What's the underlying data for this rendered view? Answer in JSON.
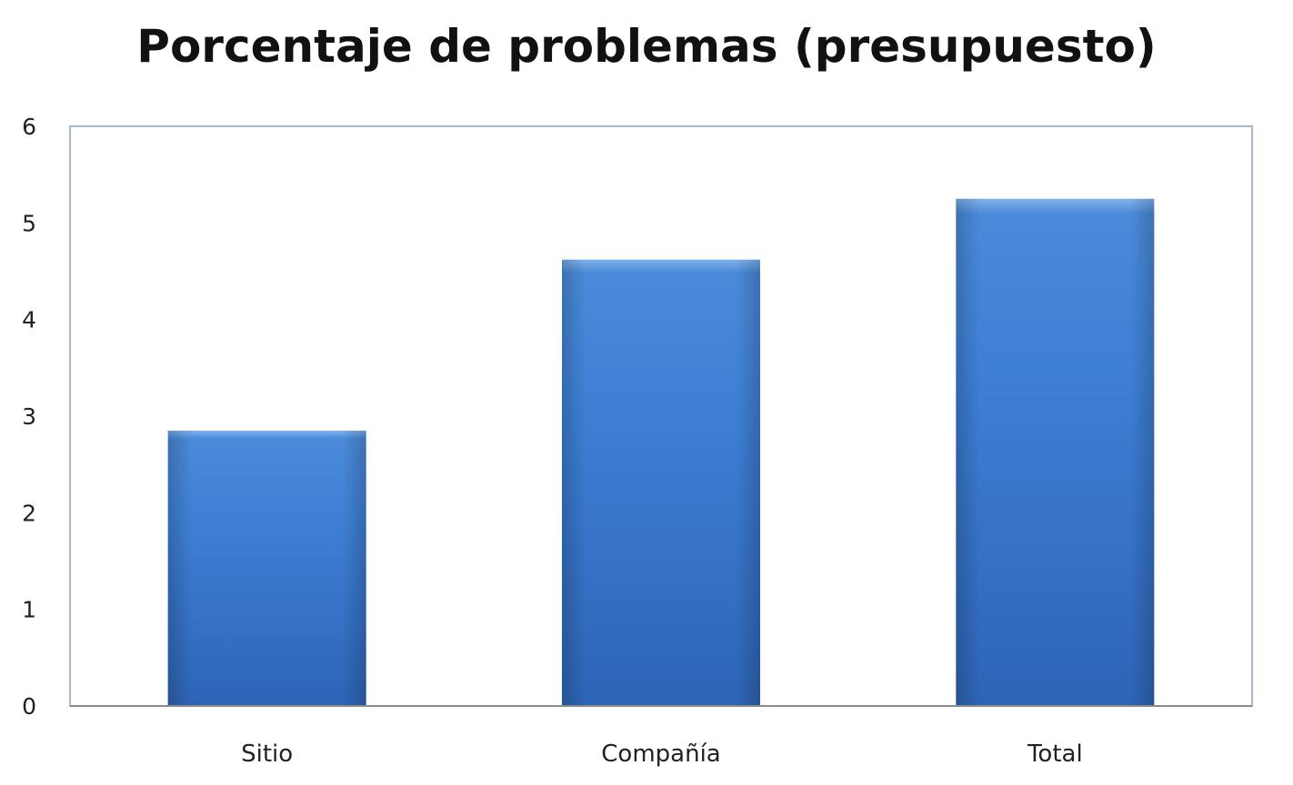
{
  "chart_data": {
    "type": "bar",
    "title": "Porcentaje de problemas (presupuesto)",
    "xlabel": "",
    "ylabel": "",
    "categories": [
      "Sitio",
      "Compañía",
      "Total"
    ],
    "values": [
      2.85,
      4.62,
      5.25
    ],
    "ylim": [
      0,
      6
    ],
    "yticks": [
      "0",
      "1",
      "2",
      "3",
      "4",
      "5",
      "6"
    ],
    "grid": false,
    "legend": "none",
    "colors": {
      "bar_top": "#7fb2ea",
      "bar_mid": "#3d7fd4",
      "bar_bottom": "#2e64b6",
      "plot_border": "#a8b8c8",
      "axis": "#8a8a8a"
    }
  }
}
